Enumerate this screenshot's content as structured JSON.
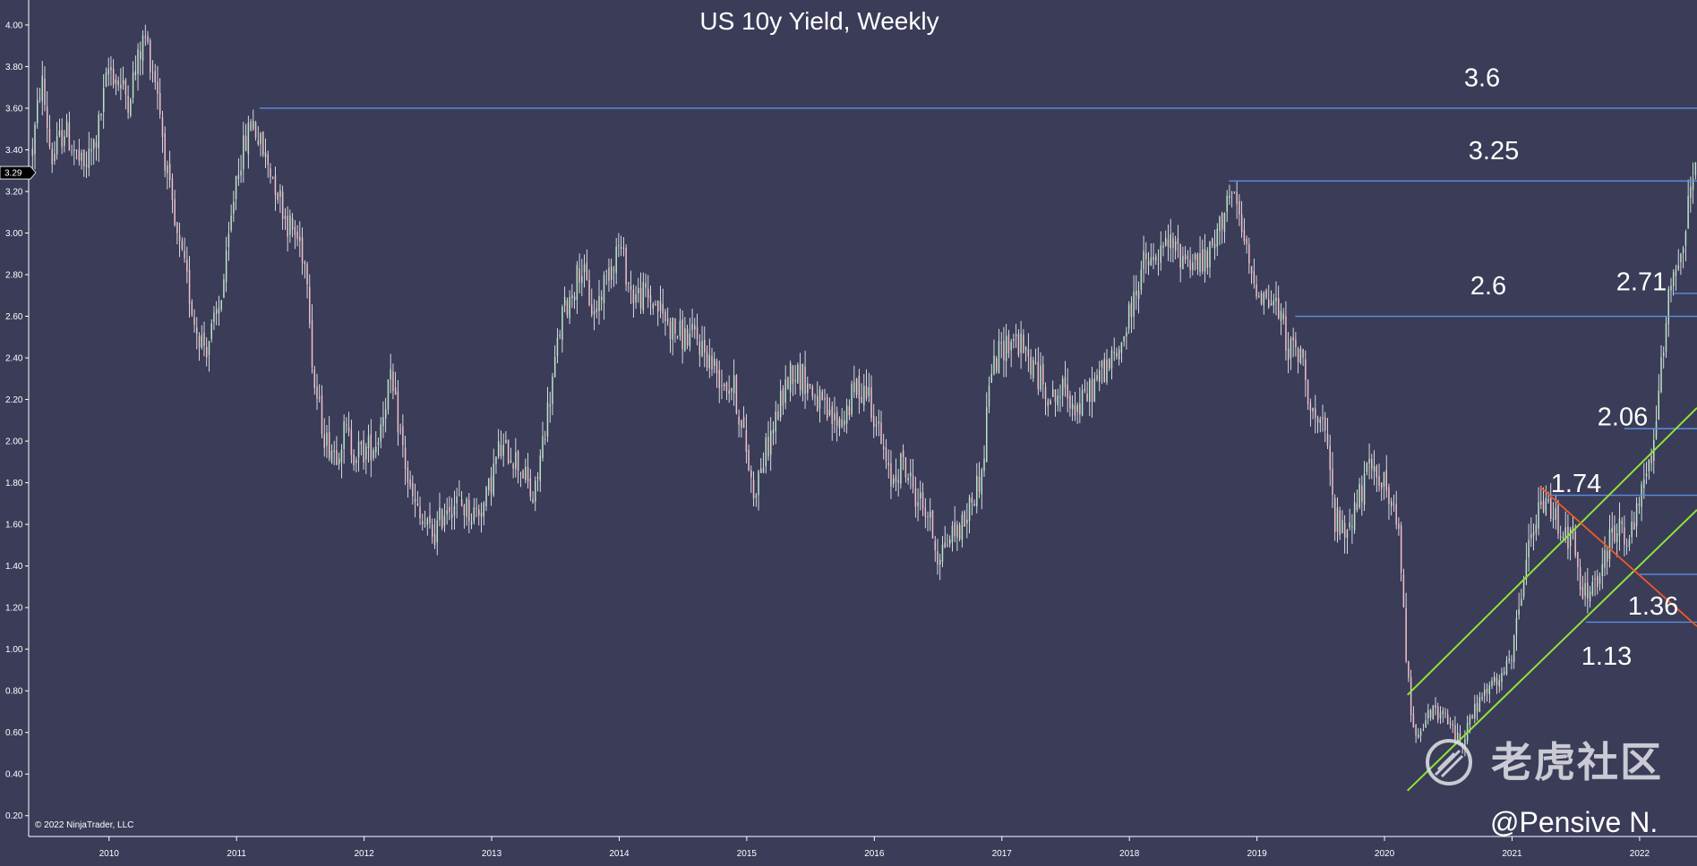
{
  "chart_data": {
    "type": "candlestick",
    "title": "US 10y Yield, Weekly",
    "xlabel": "",
    "ylabel": "",
    "ylim": [
      0.1,
      4.12
    ],
    "xlim": [
      2009.37,
      2022.45
    ],
    "y_ticks": [
      0.2,
      0.4,
      0.6,
      0.8,
      1.0,
      1.2,
      1.4,
      1.6,
      1.8,
      2.0,
      2.2,
      2.4,
      2.6,
      2.8,
      3.0,
      3.2,
      3.4,
      3.6,
      3.8,
      4.0
    ],
    "y_tick_labels": [
      "0.20",
      "0.40",
      "0.60",
      "0.80",
      "1.00",
      "1.20",
      "1.40",
      "1.60",
      "1.80",
      "2.00",
      "2.20",
      "2.40",
      "2.60",
      "2.80",
      "3.00",
      "3.20",
      "3.40",
      "3.60",
      "3.80",
      "4.00"
    ],
    "x_ticks": [
      2010,
      2011,
      2012,
      2013,
      2014,
      2015,
      2016,
      2017,
      2018,
      2019,
      2020,
      2021,
      2022
    ],
    "x_tick_labels": [
      "2010",
      "2011",
      "2012",
      "2013",
      "2014",
      "2015",
      "2016",
      "2017",
      "2018",
      "2019",
      "2020",
      "2021",
      "2022"
    ],
    "last_value": 3.29,
    "last_value_label": "3.29",
    "grid": false,
    "colors": {
      "background": "#3a3c58",
      "up": "#b9e6c4",
      "down": "#f2c0c8",
      "wick": "#ffffff",
      "level_line": "#5b8fe0",
      "channel": "#8ee43a",
      "trend_down": "#f05a28",
      "text": "#ffffff"
    },
    "anchor_path": [
      [
        2009.4,
        3.4
      ],
      [
        2009.47,
        3.75
      ],
      [
        2009.55,
        3.35
      ],
      [
        2009.65,
        3.5
      ],
      [
        2009.8,
        3.3
      ],
      [
        2009.9,
        3.45
      ],
      [
        2010.0,
        3.8
      ],
      [
        2010.15,
        3.65
      ],
      [
        2010.28,
        3.95
      ],
      [
        2010.38,
        3.7
      ],
      [
        2010.45,
        3.3
      ],
      [
        2010.52,
        3.0
      ],
      [
        2010.6,
        2.8
      ],
      [
        2010.68,
        2.55
      ],
      [
        2010.76,
        2.45
      ],
      [
        2010.85,
        2.6
      ],
      [
        2010.92,
        2.85
      ],
      [
        2011.0,
        3.3
      ],
      [
        2011.08,
        3.45
      ],
      [
        2011.12,
        3.55
      ],
      [
        2011.2,
        3.4
      ],
      [
        2011.3,
        3.25
      ],
      [
        2011.4,
        3.05
      ],
      [
        2011.5,
        2.95
      ],
      [
        2011.56,
        2.8
      ],
      [
        2011.6,
        2.3
      ],
      [
        2011.7,
        2.0
      ],
      [
        2011.78,
        1.95
      ],
      [
        2011.85,
        2.05
      ],
      [
        2011.92,
        1.95
      ],
      [
        2012.0,
        1.95
      ],
      [
        2012.1,
        2.0
      ],
      [
        2012.2,
        2.3
      ],
      [
        2012.28,
        2.05
      ],
      [
        2012.36,
        1.75
      ],
      [
        2012.45,
        1.6
      ],
      [
        2012.55,
        1.55
      ],
      [
        2012.65,
        1.7
      ],
      [
        2012.75,
        1.7
      ],
      [
        2012.85,
        1.65
      ],
      [
        2012.95,
        1.7
      ],
      [
        2013.05,
        1.95
      ],
      [
        2013.15,
        1.95
      ],
      [
        2013.25,
        1.85
      ],
      [
        2013.33,
        1.7
      ],
      [
        2013.4,
        2.0
      ],
      [
        2013.48,
        2.3
      ],
      [
        2013.55,
        2.6
      ],
      [
        2013.62,
        2.7
      ],
      [
        2013.7,
        2.85
      ],
      [
        2013.8,
        2.6
      ],
      [
        2013.9,
        2.8
      ],
      [
        2014.0,
        2.95
      ],
      [
        2014.1,
        2.7
      ],
      [
        2014.2,
        2.7
      ],
      [
        2014.3,
        2.65
      ],
      [
        2014.4,
        2.55
      ],
      [
        2014.5,
        2.5
      ],
      [
        2014.6,
        2.5
      ],
      [
        2014.7,
        2.4
      ],
      [
        2014.8,
        2.3
      ],
      [
        2014.9,
        2.25
      ],
      [
        2015.0,
        1.95
      ],
      [
        2015.05,
        1.75
      ],
      [
        2015.15,
        1.95
      ],
      [
        2015.25,
        2.15
      ],
      [
        2015.35,
        2.35
      ],
      [
        2015.45,
        2.3
      ],
      [
        2015.55,
        2.2
      ],
      [
        2015.65,
        2.1
      ],
      [
        2015.75,
        2.1
      ],
      [
        2015.85,
        2.25
      ],
      [
        2015.95,
        2.25
      ],
      [
        2016.05,
        2.0
      ],
      [
        2016.12,
        1.8
      ],
      [
        2016.22,
        1.9
      ],
      [
        2016.32,
        1.75
      ],
      [
        2016.42,
        1.65
      ],
      [
        2016.5,
        1.45
      ],
      [
        2016.6,
        1.55
      ],
      [
        2016.7,
        1.6
      ],
      [
        2016.78,
        1.75
      ],
      [
        2016.85,
        1.85
      ],
      [
        2016.9,
        2.3
      ],
      [
        2017.0,
        2.45
      ],
      [
        2017.1,
        2.5
      ],
      [
        2017.2,
        2.4
      ],
      [
        2017.3,
        2.3
      ],
      [
        2017.4,
        2.2
      ],
      [
        2017.5,
        2.25
      ],
      [
        2017.6,
        2.15
      ],
      [
        2017.7,
        2.25
      ],
      [
        2017.8,
        2.35
      ],
      [
        2017.9,
        2.4
      ],
      [
        2018.0,
        2.6
      ],
      [
        2018.1,
        2.85
      ],
      [
        2018.2,
        2.85
      ],
      [
        2018.3,
        2.95
      ],
      [
        2018.4,
        2.9
      ],
      [
        2018.5,
        2.87
      ],
      [
        2018.6,
        2.85
      ],
      [
        2018.7,
        3.0
      ],
      [
        2018.77,
        3.2
      ],
      [
        2018.85,
        3.1
      ],
      [
        2018.95,
        2.8
      ],
      [
        2019.05,
        2.7
      ],
      [
        2019.15,
        2.65
      ],
      [
        2019.25,
        2.45
      ],
      [
        2019.35,
        2.4
      ],
      [
        2019.45,
        2.1
      ],
      [
        2019.55,
        2.0
      ],
      [
        2019.6,
        1.65
      ],
      [
        2019.68,
        1.55
      ],
      [
        2019.78,
        1.7
      ],
      [
        2019.88,
        1.85
      ],
      [
        2019.96,
        1.85
      ],
      [
        2020.05,
        1.7
      ],
      [
        2020.12,
        1.5
      ],
      [
        2020.18,
        0.9
      ],
      [
        2020.22,
        0.6
      ],
      [
        2020.3,
        0.65
      ],
      [
        2020.4,
        0.7
      ],
      [
        2020.5,
        0.65
      ],
      [
        2020.6,
        0.55
      ],
      [
        2020.7,
        0.7
      ],
      [
        2020.8,
        0.8
      ],
      [
        2020.9,
        0.85
      ],
      [
        2021.0,
        0.95
      ],
      [
        2021.1,
        1.4
      ],
      [
        2021.2,
        1.65
      ],
      [
        2021.28,
        1.7
      ],
      [
        2021.38,
        1.6
      ],
      [
        2021.48,
        1.5
      ],
      [
        2021.55,
        1.25
      ],
      [
        2021.62,
        1.3
      ],
      [
        2021.7,
        1.35
      ],
      [
        2021.78,
        1.55
      ],
      [
        2021.85,
        1.6
      ],
      [
        2021.92,
        1.5
      ],
      [
        2022.0,
        1.7
      ],
      [
        2022.08,
        1.9
      ],
      [
        2022.15,
        2.2
      ],
      [
        2022.22,
        2.7
      ],
      [
        2022.28,
        2.85
      ],
      [
        2022.34,
        2.95
      ],
      [
        2022.4,
        3.2
      ],
      [
        2022.44,
        3.29
      ]
    ],
    "levels": [
      {
        "value": 3.6,
        "label": "3.6",
        "from": 2011.18,
        "to": 2022.45
      },
      {
        "value": 3.25,
        "label": "3.25",
        "from": 2018.78,
        "to": 2022.45
      },
      {
        "value": 2.6,
        "label": "2.6",
        "from": 2019.3,
        "to": 2022.45
      },
      {
        "value": 2.71,
        "label": "2.71",
        "from": 2022.27,
        "to": 2022.45
      },
      {
        "value": 2.06,
        "label": "2.06",
        "from": 2021.88,
        "to": 2022.45
      },
      {
        "value": 1.74,
        "label": "1.74",
        "from": 2021.3,
        "to": 2022.45
      },
      {
        "value": 1.36,
        "label": "1.36",
        "from": 2022.0,
        "to": 2022.45
      },
      {
        "value": 1.13,
        "label": "1.13",
        "from": 2021.58,
        "to": 2022.45
      }
    ],
    "channel_lines": [
      {
        "from": [
          2020.18,
          0.78
        ],
        "to": [
          2022.45,
          2.16
        ]
      },
      {
        "from": [
          2020.18,
          0.32
        ],
        "to": [
          2022.45,
          1.67
        ]
      }
    ],
    "trend_lines": [
      {
        "from": [
          2021.22,
          1.78
        ],
        "to": [
          2022.45,
          1.11
        ]
      }
    ],
    "copyright": "© 2022 NinjaTrader, LLC",
    "watermark_text": "老虎社区",
    "handle": "@Pensive N."
  }
}
